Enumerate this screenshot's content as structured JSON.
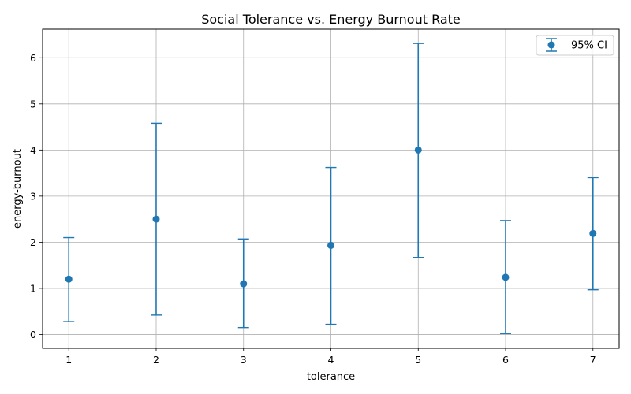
{
  "chart_data": {
    "type": "scatter",
    "title": "Social Tolerance vs. Energy Burnout Rate",
    "xlabel": "tolerance",
    "ylabel": "energy-burnout",
    "x": [
      1,
      2,
      3,
      4,
      5,
      6,
      7
    ],
    "y": [
      1.2,
      2.5,
      1.1,
      1.93,
      4.0,
      1.24,
      2.19
    ],
    "ci_low": [
      0.28,
      0.42,
      0.15,
      0.22,
      1.67,
      0.02,
      0.97
    ],
    "ci_high": [
      2.1,
      4.58,
      2.07,
      3.62,
      6.31,
      2.47,
      3.4
    ],
    "xticks": [
      1,
      2,
      3,
      4,
      5,
      6,
      7
    ],
    "yticks": [
      0,
      1,
      2,
      3,
      4,
      5,
      6
    ],
    "xlim": [
      0.7,
      7.3
    ],
    "ylim": [
      -0.3,
      6.62
    ],
    "grid": true,
    "legend": {
      "position": "top-right",
      "label": "95% CI"
    },
    "color": "#1f77b4"
  }
}
